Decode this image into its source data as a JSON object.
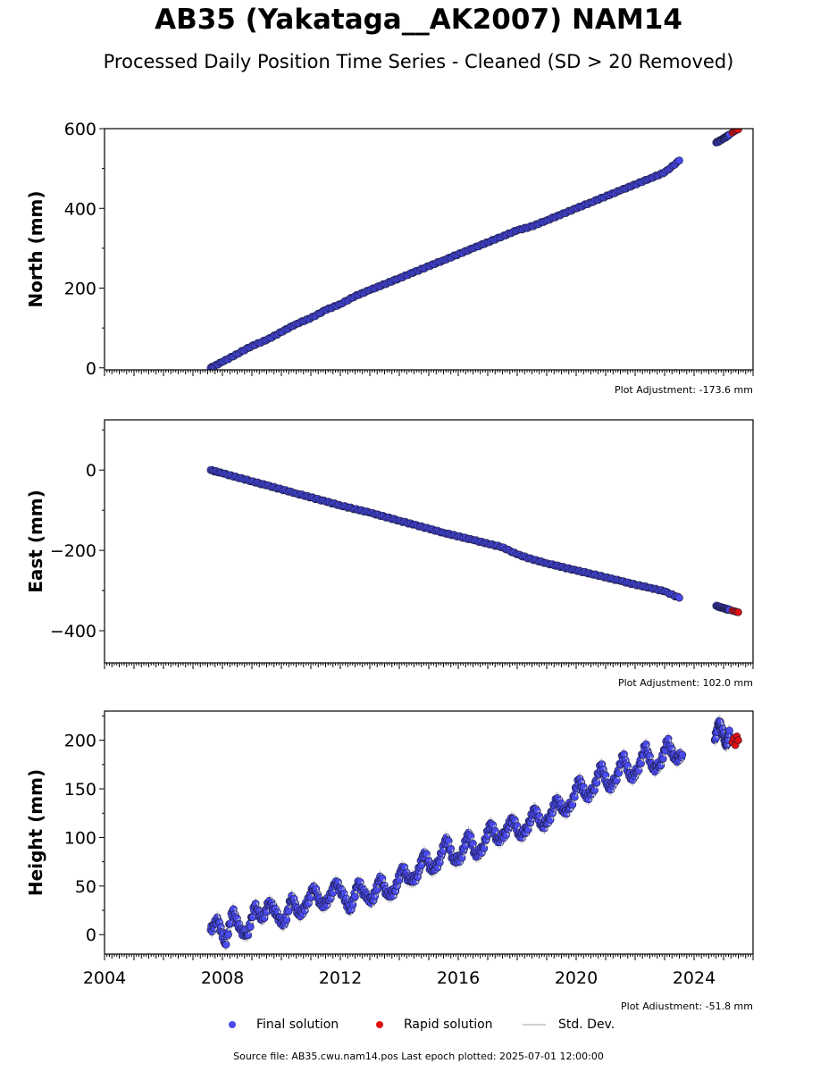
{
  "title": "AB35 (Yakataga__AK2007) NAM14",
  "subtitle": "Processed Daily Position Time Series - Cleaned (SD > 20 Removed)",
  "colors": {
    "final": "#4a4af0",
    "final_edge": "#1a1a3a",
    "rapid": "#e01010",
    "stddev": "#c8c8c8"
  },
  "legend": {
    "final": "Final solution",
    "rapid": "Rapid solution",
    "stddev": "Std. Dev."
  },
  "footer": "Source file: AB35.cwu.nam14.pos  Last epoch plotted: 2025-07-01 12:00:00",
  "chart_data": [
    {
      "type": "scatter",
      "ylabel": "North (mm)",
      "adjustment_label": "Plot Adjustment: -173.6 mm",
      "xlim": [
        2004.0,
        2026.0
      ],
      "ylim": [
        -5,
        600
      ],
      "yticks": [
        0,
        200,
        400,
        600
      ],
      "ytick_labels": [
        "0",
        "200",
        "400",
        "600"
      ],
      "show_xtick_labels": false,
      "series": [
        {
          "kind": "final",
          "x": [
            2007.6,
            2008.0,
            2008.5,
            2009.0,
            2009.5,
            2010.0,
            2010.5,
            2011.0,
            2011.5,
            2012.0,
            2012.5,
            2013.0,
            2013.5,
            2014.0,
            2014.5,
            2015.0,
            2015.5,
            2016.0,
            2016.5,
            2017.0,
            2017.5,
            2018.0,
            2018.5,
            2019.0,
            2019.5,
            2020.0,
            2020.5,
            2021.0,
            2021.5,
            2022.0,
            2022.5,
            2023.0,
            2023.5,
            null,
            2024.75,
            2025.0,
            2025.2
          ],
          "y": [
            0,
            15,
            35,
            55,
            70,
            90,
            110,
            125,
            145,
            160,
            180,
            195,
            210,
            225,
            240,
            255,
            270,
            285,
            300,
            315,
            330,
            345,
            355,
            370,
            385,
            400,
            415,
            430,
            445,
            460,
            475,
            490,
            520,
            null,
            565,
            575,
            585
          ]
        },
        {
          "kind": "rapid",
          "x": [
            2025.3,
            2025.35,
            2025.4,
            2025.45,
            2025.5
          ],
          "y": [
            590,
            593,
            595,
            597,
            598
          ]
        }
      ]
    },
    {
      "type": "scatter",
      "ylabel": "East (mm)",
      "adjustment_label": "Plot Adjustment: 102.0 mm",
      "xlim": [
        2004.0,
        2026.0
      ],
      "ylim": [
        -480,
        125
      ],
      "yticks": [
        0,
        -200,
        -400
      ],
      "ytick_labels": [
        "0",
        "−200",
        "−400"
      ],
      "show_xtick_labels": false,
      "series": [
        {
          "kind": "final",
          "x": [
            2007.6,
            2008.0,
            2008.5,
            2009.0,
            2009.5,
            2010.0,
            2010.5,
            2011.0,
            2011.5,
            2012.0,
            2012.5,
            2013.0,
            2013.5,
            2014.0,
            2014.5,
            2015.0,
            2015.5,
            2016.0,
            2016.5,
            2017.0,
            2017.5,
            2018.0,
            2018.5,
            2019.0,
            2019.5,
            2020.0,
            2020.5,
            2021.0,
            2021.5,
            2022.0,
            2022.5,
            2023.0,
            2023.5,
            null,
            2024.75,
            2025.0,
            2025.2
          ],
          "y": [
            0,
            -8,
            -18,
            -28,
            -38,
            -48,
            -58,
            -68,
            -78,
            -88,
            -97,
            -106,
            -116,
            -126,
            -136,
            -146,
            -156,
            -165,
            -174,
            -183,
            -192,
            -210,
            -222,
            -232,
            -241,
            -250,
            -258,
            -267,
            -276,
            -285,
            -293,
            -302,
            -318,
            null,
            -338,
            -344,
            -348
          ]
        },
        {
          "kind": "rapid",
          "x": [
            2025.3,
            2025.35,
            2025.4,
            2025.45,
            2025.5
          ],
          "y": [
            -350,
            -351,
            -352,
            -353,
            -354
          ]
        }
      ]
    },
    {
      "type": "scatter",
      "ylabel": "Height (mm)",
      "adjustment_label": "Plot Adjustment: -51.8 mm",
      "xlim": [
        2004.0,
        2026.0
      ],
      "ylim": [
        -20,
        230
      ],
      "yticks": [
        0,
        50,
        100,
        150,
        200
      ],
      "ytick_labels": [
        "0",
        "50",
        "100",
        "150",
        "200"
      ],
      "xticks": [
        2004,
        2008,
        2012,
        2016,
        2020,
        2024
      ],
      "xtick_labels": [
        "2004",
        "2008",
        "2012",
        "2016",
        "2020",
        "2024"
      ],
      "show_xtick_labels": true,
      "series": [
        {
          "kind": "final",
          "x": [
            2007.6,
            2007.85,
            2008.1,
            2008.35,
            2008.6,
            2008.85,
            2009.1,
            2009.35,
            2009.6,
            2009.85,
            2010.1,
            2010.35,
            2010.6,
            2010.85,
            2011.1,
            2011.35,
            2011.6,
            2011.85,
            2012.1,
            2012.35,
            2012.6,
            2012.85,
            2013.1,
            2013.35,
            2013.6,
            2013.85,
            2014.1,
            2014.35,
            2014.6,
            2014.85,
            2015.1,
            2015.35,
            2015.6,
            2015.85,
            2016.1,
            2016.35,
            2016.6,
            2016.85,
            2017.1,
            2017.35,
            2017.6,
            2017.85,
            2018.1,
            2018.35,
            2018.6,
            2018.85,
            2019.1,
            2019.35,
            2019.6,
            2019.85,
            2020.1,
            2020.35,
            2020.6,
            2020.85,
            2021.1,
            2021.35,
            2021.6,
            2021.85,
            2022.1,
            2022.35,
            2022.6,
            2022.85,
            2023.1,
            2023.35,
            2023.6,
            null,
            2024.7,
            2024.85,
            2025.0,
            2025.1,
            2025.2
          ],
          "y": [
            5,
            15,
            -10,
            25,
            5,
            0,
            30,
            15,
            35,
            20,
            10,
            40,
            20,
            30,
            50,
            30,
            35,
            55,
            40,
            25,
            55,
            40,
            35,
            60,
            40,
            45,
            70,
            55,
            60,
            85,
            65,
            75,
            100,
            75,
            80,
            105,
            80,
            90,
            115,
            95,
            105,
            120,
            100,
            110,
            130,
            110,
            120,
            140,
            125,
            135,
            160,
            140,
            150,
            175,
            150,
            160,
            185,
            160,
            170,
            195,
            170,
            175,
            200,
            180,
            185,
            null,
            200,
            220,
            205,
            195,
            210
          ]
        },
        {
          "kind": "rapid",
          "x": [
            2025.3,
            2025.35,
            2025.4,
            2025.45,
            2025.5
          ],
          "y": [
            198,
            202,
            195,
            204,
            200
          ]
        }
      ]
    }
  ]
}
